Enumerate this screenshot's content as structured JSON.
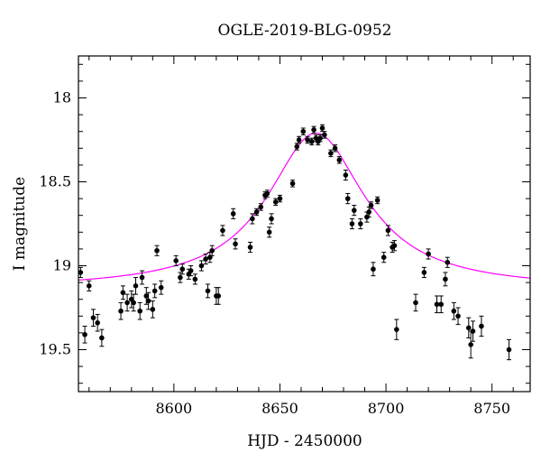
{
  "chart_data": {
    "type": "scatter",
    "title": "OGLE-2019-BLG-0952",
    "xlabel": "HJD - 2450000",
    "ylabel": "I magnitude",
    "xlim": [
      8555,
      8768
    ],
    "ylim": [
      19.75,
      17.75
    ],
    "y_inverted": true,
    "x_ticks": [
      8600,
      8650,
      8700,
      8750
    ],
    "y_ticks": [
      18,
      18.5,
      19,
      19.5
    ],
    "x_minor_step": 10,
    "y_minor_step": 0.1,
    "grid": false,
    "colors": {
      "points": "#000000",
      "model": "#ff00ff"
    },
    "model": {
      "name": "",
      "t0": 8667,
      "baseline": 19.14,
      "peak_amplitude": 0.93,
      "width": 28
    },
    "series": [
      {
        "name": "",
        "points": [
          [
            8556,
            19.04,
            0.03
          ],
          [
            8558,
            19.41,
            0.05
          ],
          [
            8560,
            19.12,
            0.03
          ],
          [
            8562,
            19.31,
            0.05
          ],
          [
            8564,
            19.34,
            0.05
          ],
          [
            8566,
            19.43,
            0.05
          ],
          [
            8575,
            19.27,
            0.05
          ],
          [
            8576,
            19.16,
            0.04
          ],
          [
            8578,
            19.22,
            0.05
          ],
          [
            8580,
            19.2,
            0.05
          ],
          [
            8581,
            19.22,
            0.05
          ],
          [
            8582,
            19.12,
            0.05
          ],
          [
            8584,
            19.27,
            0.05
          ],
          [
            8585,
            19.07,
            0.04
          ],
          [
            8587,
            19.18,
            0.05
          ],
          [
            8588,
            19.21,
            0.05
          ],
          [
            8590,
            19.26,
            0.05
          ],
          [
            8591,
            19.15,
            0.04
          ],
          [
            8592,
            18.91,
            0.03
          ],
          [
            8594,
            19.13,
            0.04
          ],
          [
            8601,
            18.97,
            0.03
          ],
          [
            8603,
            19.07,
            0.03
          ],
          [
            8604,
            19.02,
            0.03
          ],
          [
            8607,
            19.05,
            0.03
          ],
          [
            8608,
            19.03,
            0.03
          ],
          [
            8610,
            19.08,
            0.03
          ],
          [
            8613,
            19.0,
            0.03
          ],
          [
            8615,
            18.96,
            0.03
          ],
          [
            8616,
            19.15,
            0.04
          ],
          [
            8617,
            18.95,
            0.03
          ],
          [
            8618,
            18.91,
            0.03
          ],
          [
            8620,
            19.18,
            0.05
          ],
          [
            8621,
            19.18,
            0.05
          ],
          [
            8623,
            18.79,
            0.03
          ],
          [
            8628,
            18.69,
            0.03
          ],
          [
            8629,
            18.87,
            0.03
          ],
          [
            8636,
            18.89,
            0.03
          ],
          [
            8637,
            18.72,
            0.03
          ],
          [
            8639,
            18.68,
            0.02
          ],
          [
            8641,
            18.65,
            0.02
          ],
          [
            8643,
            18.58,
            0.02
          ],
          [
            8644,
            18.57,
            0.02
          ],
          [
            8645,
            18.8,
            0.03
          ],
          [
            8646,
            18.72,
            0.03
          ],
          [
            8648,
            18.62,
            0.02
          ],
          [
            8650,
            18.6,
            0.02
          ],
          [
            8656,
            18.51,
            0.02
          ],
          [
            8658,
            18.29,
            0.02
          ],
          [
            8659,
            18.25,
            0.02
          ],
          [
            8661,
            18.2,
            0.02
          ],
          [
            8663,
            18.25,
            0.02
          ],
          [
            8665,
            18.26,
            0.02
          ],
          [
            8666,
            18.19,
            0.02
          ],
          [
            8667,
            18.24,
            0.02
          ],
          [
            8668,
            18.26,
            0.02
          ],
          [
            8669,
            18.24,
            0.02
          ],
          [
            8670,
            18.18,
            0.02
          ],
          [
            8671,
            18.22,
            0.02
          ],
          [
            8674,
            18.33,
            0.02
          ],
          [
            8676,
            18.3,
            0.02
          ],
          [
            8678,
            18.37,
            0.02
          ],
          [
            8681,
            18.46,
            0.03
          ],
          [
            8682,
            18.6,
            0.03
          ],
          [
            8684,
            18.75,
            0.03
          ],
          [
            8685,
            18.67,
            0.03
          ],
          [
            8688,
            18.75,
            0.03
          ],
          [
            8691,
            18.71,
            0.03
          ],
          [
            8692,
            18.68,
            0.03
          ],
          [
            8693,
            18.64,
            0.02
          ],
          [
            8694,
            19.02,
            0.04
          ],
          [
            8696,
            18.61,
            0.02
          ],
          [
            8699,
            18.95,
            0.03
          ],
          [
            8701,
            18.79,
            0.03
          ],
          [
            8703,
            18.89,
            0.03
          ],
          [
            8704,
            18.88,
            0.03
          ],
          [
            8705,
            19.38,
            0.06
          ],
          [
            8714,
            19.22,
            0.05
          ],
          [
            8718,
            19.04,
            0.03
          ],
          [
            8720,
            18.93,
            0.03
          ],
          [
            8724,
            19.23,
            0.05
          ],
          [
            8726,
            19.23,
            0.05
          ],
          [
            8728,
            19.08,
            0.04
          ],
          [
            8729,
            18.98,
            0.03
          ],
          [
            8732,
            19.27,
            0.05
          ],
          [
            8734,
            19.3,
            0.05
          ],
          [
            8739,
            19.37,
            0.06
          ],
          [
            8740,
            19.47,
            0.08
          ],
          [
            8741,
            19.39,
            0.06
          ],
          [
            8745,
            19.36,
            0.06
          ],
          [
            8758,
            19.5,
            0.06
          ]
        ]
      }
    ]
  }
}
